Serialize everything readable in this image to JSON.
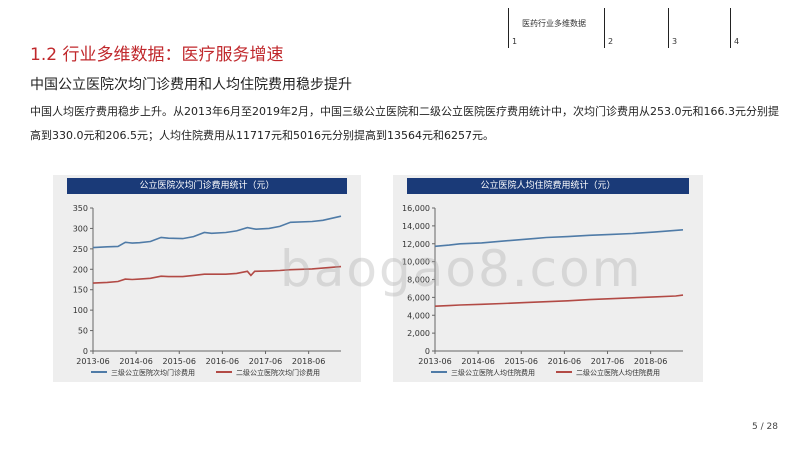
{
  "header": {
    "nav_label": "医药行业多维数据",
    "nav_numbers": [
      "1",
      "2",
      "3",
      "4"
    ]
  },
  "section_title": "1.2 行业多维数据：医疗服务增速",
  "subtitle": "中国公立医院次均门诊费用和人均住院费用稳步提升",
  "paragraph": "中国人均医疗费用稳步上升。从2013年6月至2019年2月，中国三级公立医院和二级公立医院医疗费用统计中，次均门诊费用从253.0元和166.3元分别提高到330.0元和206.5元；人均住院费用从11717元和5016元分别提高到13564元和6257元。",
  "watermark": "baogao8.com",
  "page_number": "5  /  28",
  "colors": {
    "series_blue": "#4f7ba7",
    "series_red": "#b24a45",
    "title_bar": "#1a3a78",
    "title_red": "#c0282c"
  },
  "chart_data": [
    {
      "type": "line",
      "title": "公立医院次均门诊费用统计（元）",
      "x_ticks": [
        "2013-06",
        "2014-06",
        "2015-06",
        "2016-06",
        "2017-06",
        "2018-06"
      ],
      "y_ticks": [
        "0",
        "50",
        "100",
        "150",
        "200",
        "250",
        "300",
        "350"
      ],
      "ylim": [
        0,
        350
      ],
      "xlim": [
        2013.42,
        2019.17
      ],
      "legend_position": "bottom",
      "series": [
        {
          "name": "三级公立医院次均门诊费用",
          "color": "#4f7ba7",
          "x": [
            2013.42,
            2013.75,
            2014.0,
            2014.17,
            2014.33,
            2014.5,
            2014.75,
            2015.0,
            2015.17,
            2015.5,
            2015.75,
            2016.0,
            2016.17,
            2016.5,
            2016.75,
            2017.0,
            2017.2,
            2017.5,
            2017.75,
            2018.0,
            2018.5,
            2018.75,
            2019.17
          ],
          "y": [
            253,
            255,
            256,
            266,
            264,
            265,
            268,
            278,
            276,
            275,
            280,
            290,
            288,
            290,
            294,
            302,
            298,
            300,
            305,
            315,
            317,
            320,
            330
          ]
        },
        {
          "name": "二级公立医院次均门诊费用",
          "color": "#b24a45",
          "x": [
            2013.42,
            2013.75,
            2014.0,
            2014.17,
            2014.33,
            2014.5,
            2014.75,
            2015.0,
            2015.17,
            2015.5,
            2015.75,
            2016.0,
            2016.5,
            2016.75,
            2017.0,
            2017.08,
            2017.17,
            2017.5,
            2017.75,
            2018.0,
            2018.5,
            2019.17
          ],
          "y": [
            166.3,
            168,
            170,
            176,
            175,
            176,
            178,
            183,
            182,
            182,
            185,
            188,
            188,
            190,
            195,
            185,
            195,
            196,
            197,
            199,
            201,
            206.5
          ]
        }
      ]
    },
    {
      "type": "line",
      "title": "公立医院人均住院费用统计（元）",
      "x_ticks": [
        "2013-06",
        "2014-06",
        "2015-06",
        "2016-06",
        "2017-06",
        "2018-06"
      ],
      "y_ticks": [
        "0",
        "2,000",
        "4,000",
        "6,000",
        "8,000",
        "10,000",
        "12,000",
        "14,000",
        "16,000"
      ],
      "ylim": [
        0,
        16000
      ],
      "xlim": [
        2013.42,
        2019.17
      ],
      "legend_position": "bottom",
      "series": [
        {
          "name": "三级公立医院人均住院费用",
          "color": "#4f7ba7",
          "x": [
            2013.42,
            2013.75,
            2014.0,
            2014.5,
            2015.0,
            2015.5,
            2015.75,
            2016.0,
            2016.5,
            2017.0,
            2017.5,
            2018.0,
            2018.5,
            2019.17
          ],
          "y": [
            11717,
            11850,
            12000,
            12100,
            12300,
            12500,
            12600,
            12700,
            12800,
            12950,
            13050,
            13150,
            13300,
            13564
          ]
        },
        {
          "name": "二级公立医院人均住院费用",
          "color": "#b24a45",
          "x": [
            2013.42,
            2013.75,
            2014.0,
            2014.5,
            2015.0,
            2015.5,
            2016.0,
            2016.5,
            2017.0,
            2017.5,
            2018.0,
            2018.5,
            2019.0,
            2019.17
          ],
          "y": [
            5016,
            5080,
            5150,
            5220,
            5320,
            5420,
            5520,
            5620,
            5750,
            5850,
            5950,
            6050,
            6150,
            6257
          ]
        }
      ]
    }
  ]
}
